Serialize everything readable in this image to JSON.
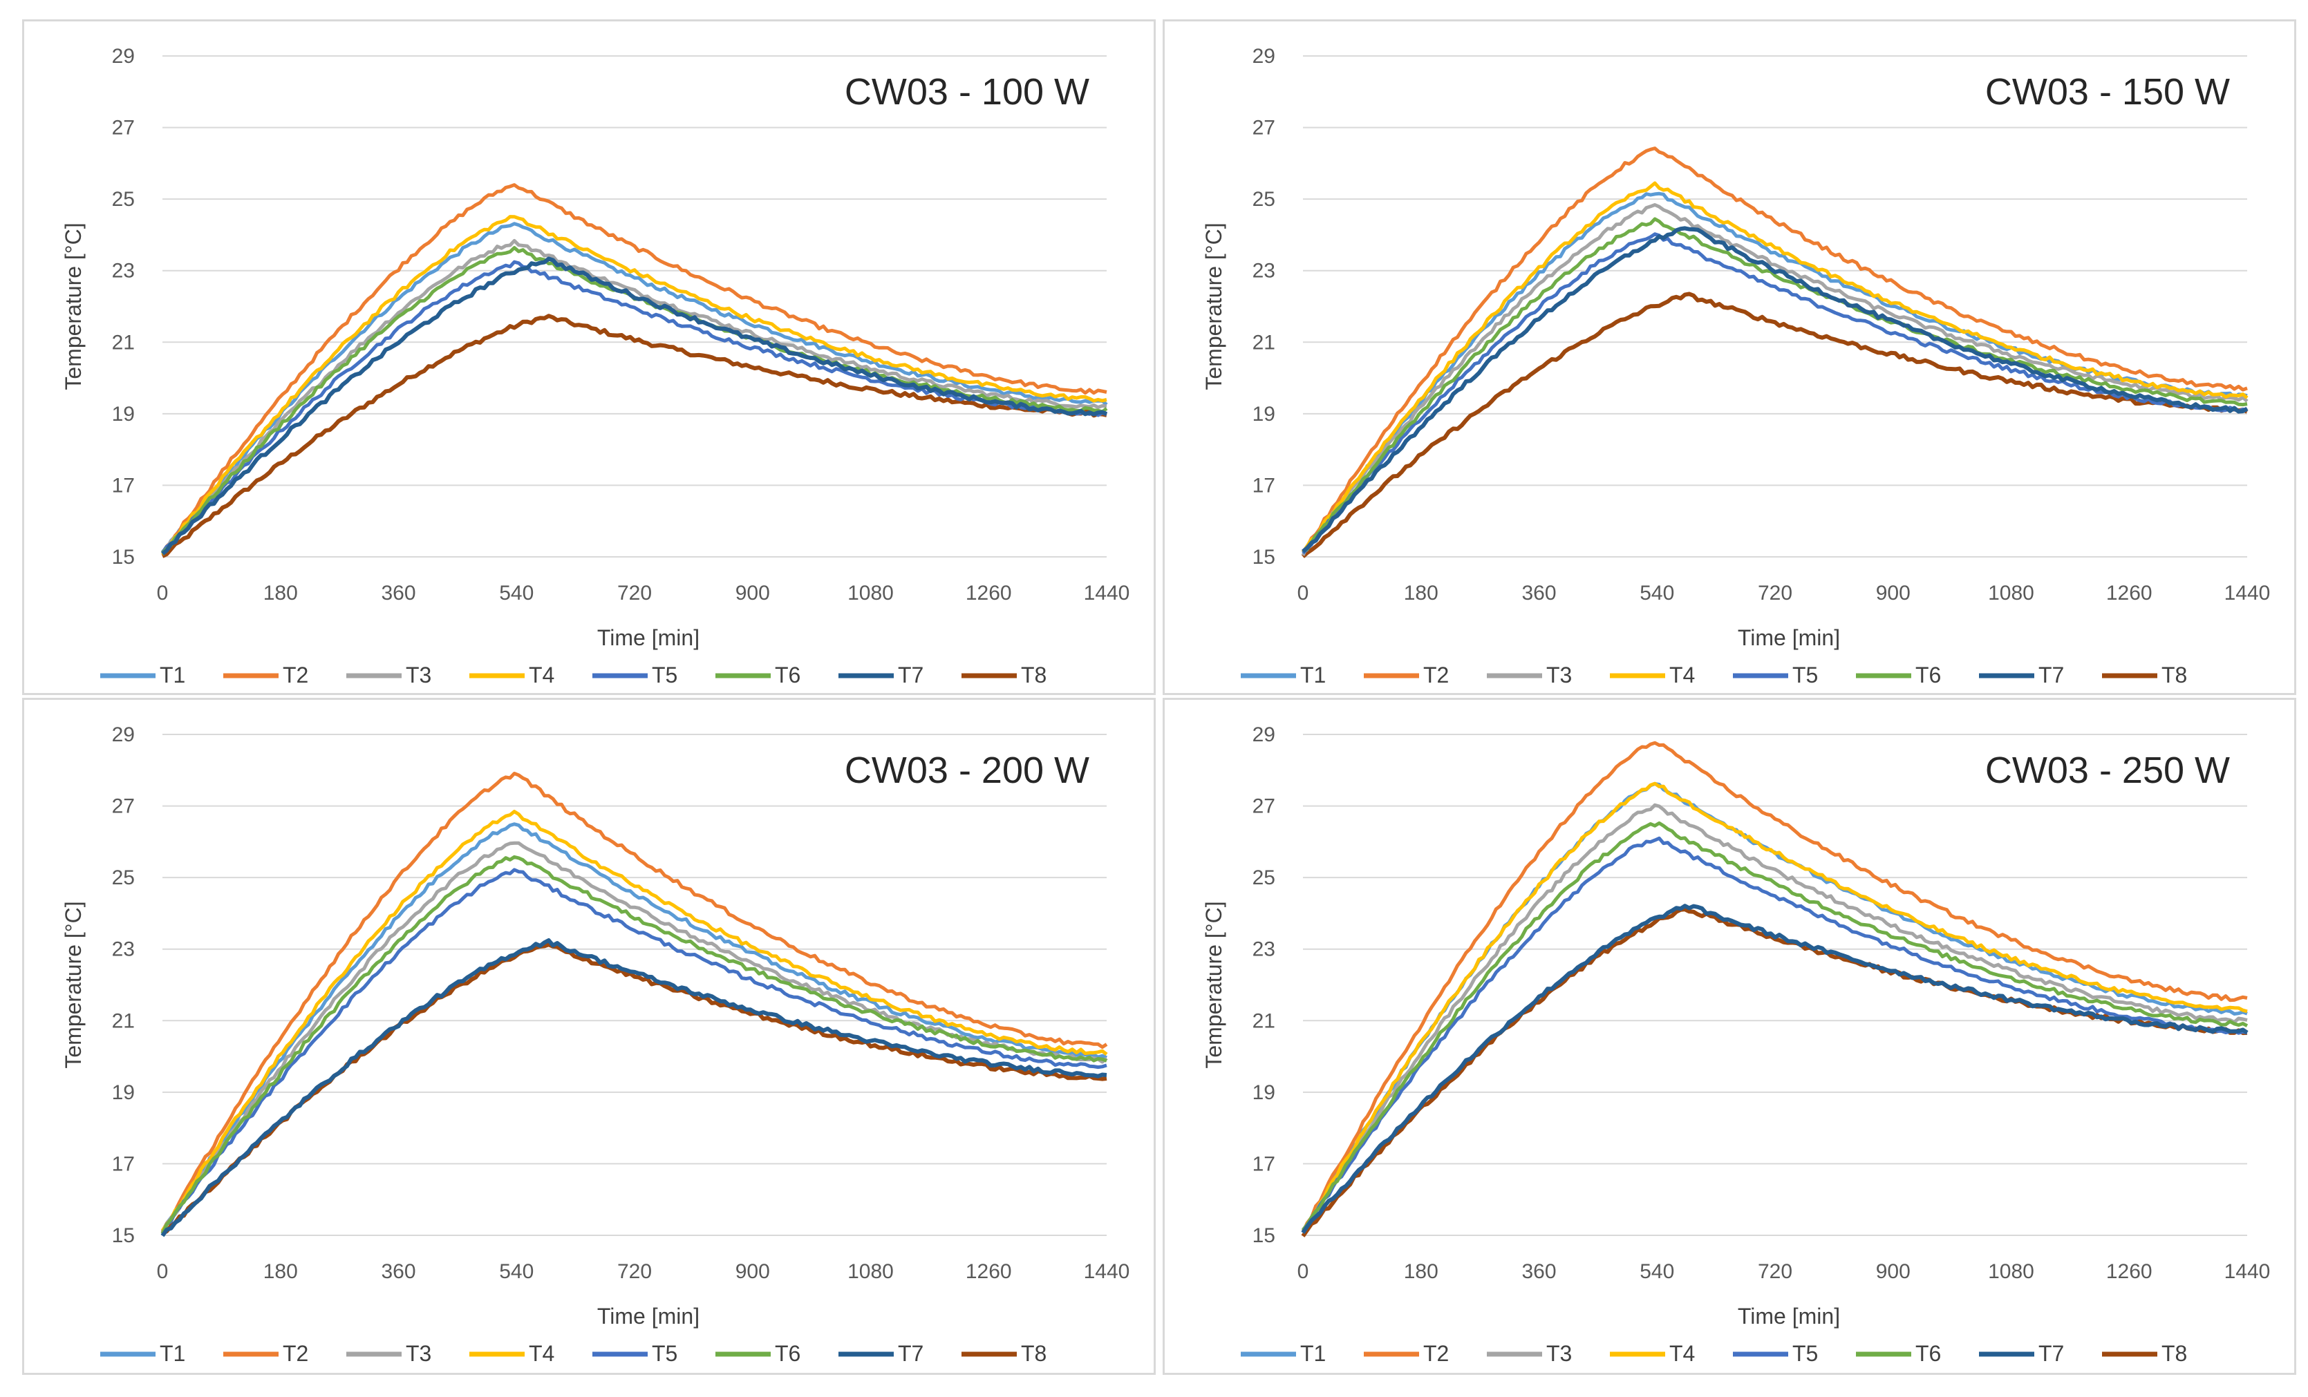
{
  "colors": {
    "T1": "#5b9bd5",
    "T2": "#ed7d31",
    "T3": "#a5a5a5",
    "T4": "#ffc000",
    "T5": "#4472c4",
    "T6": "#70ad47",
    "T7": "#255e91",
    "T8": "#9e480e"
  },
  "chart_data": [
    {
      "type": "line",
      "title": "CW03 - 100 W",
      "xlabel": "Time [min]",
      "ylabel": "Temperature [°C]",
      "xlim": [
        0,
        1440
      ],
      "ylim": [
        15,
        29
      ],
      "x_ticks": [
        "0",
        "180",
        "360",
        "540",
        "720",
        "900",
        "1080",
        "1260",
        "1440"
      ],
      "y_ticks": [
        "15",
        "17",
        "19",
        "21",
        "23",
        "25",
        "27",
        "29"
      ],
      "x": [
        0,
        540,
        1440
      ],
      "series": [
        {
          "name": "T1",
          "values": [
            15.1,
            24.3,
            19.3
          ]
        },
        {
          "name": "T2",
          "values": [
            15.1,
            25.4,
            19.6
          ]
        },
        {
          "name": "T3",
          "values": [
            15.1,
            23.8,
            19.2
          ]
        },
        {
          "name": "T4",
          "values": [
            15.1,
            24.5,
            19.4
          ]
        },
        {
          "name": "T5",
          "values": [
            15.1,
            23.2,
            19.0
          ]
        },
        {
          "name": "T6",
          "values": [
            15.1,
            23.6,
            19.1
          ]
        },
        {
          "name": "T7",
          "values": [
            15.1,
            23.3,
            19.0
          ]
        },
        {
          "name": "T8",
          "values": [
            15.0,
            21.7,
            19.0
          ]
        }
      ]
    },
    {
      "type": "line",
      "title": "CW03 - 150 W",
      "xlabel": "Time [min]",
      "ylabel": "Temperature [°C]",
      "xlim": [
        0,
        1440
      ],
      "ylim": [
        15,
        29
      ],
      "x_ticks": [
        "0",
        "180",
        "360",
        "540",
        "720",
        "900",
        "1080",
        "1260",
        "1440"
      ],
      "y_ticks": [
        "15",
        "17",
        "19",
        "21",
        "23",
        "25",
        "27",
        "29"
      ],
      "x": [
        0,
        540,
        1440
      ],
      "series": [
        {
          "name": "T1",
          "values": [
            15.1,
            25.2,
            19.5
          ]
        },
        {
          "name": "T2",
          "values": [
            15.1,
            26.4,
            19.7
          ]
        },
        {
          "name": "T3",
          "values": [
            15.1,
            24.8,
            19.4
          ]
        },
        {
          "name": "T4",
          "values": [
            15.1,
            25.4,
            19.5
          ]
        },
        {
          "name": "T5",
          "values": [
            15.1,
            24.0,
            19.1
          ]
        },
        {
          "name": "T6",
          "values": [
            15.1,
            24.4,
            19.3
          ]
        },
        {
          "name": "T7",
          "values": [
            15.1,
            24.2,
            19.1
          ]
        },
        {
          "name": "T8",
          "values": [
            15.0,
            22.3,
            19.1
          ]
        }
      ]
    },
    {
      "type": "line",
      "title": "CW03 - 200 W",
      "xlabel": "Time [min]",
      "ylabel": "Temperature [°C]",
      "xlim": [
        0,
        1440
      ],
      "ylim": [
        15,
        29
      ],
      "x_ticks": [
        "0",
        "180",
        "360",
        "540",
        "720",
        "900",
        "1080",
        "1260",
        "1440"
      ],
      "y_ticks": [
        "15",
        "17",
        "19",
        "21",
        "23",
        "25",
        "27",
        "29"
      ],
      "x": [
        0,
        540,
        1440
      ],
      "series": [
        {
          "name": "T1",
          "values": [
            15.1,
            26.5,
            20.0
          ]
        },
        {
          "name": "T2",
          "values": [
            15.1,
            27.9,
            20.3
          ]
        },
        {
          "name": "T3",
          "values": [
            15.1,
            26.0,
            19.9
          ]
        },
        {
          "name": "T4",
          "values": [
            15.1,
            26.8,
            20.1
          ]
        },
        {
          "name": "T5",
          "values": [
            15.1,
            25.2,
            19.7
          ]
        },
        {
          "name": "T6",
          "values": [
            15.1,
            25.6,
            19.9
          ]
        },
        {
          "name": "T7",
          "values": [
            15.0,
            23.2,
            19.5
          ]
        },
        {
          "name": "T8",
          "values": [
            15.0,
            23.1,
            19.4
          ]
        }
      ]
    },
    {
      "type": "line",
      "title": "CW03 - 250 W",
      "xlabel": "Time [min]",
      "ylabel": "Temperature [°C]",
      "xlim": [
        0,
        1440
      ],
      "ylim": [
        15,
        29
      ],
      "x_ticks": [
        "0",
        "180",
        "360",
        "540",
        "720",
        "900",
        "1080",
        "1260",
        "1440"
      ],
      "y_ticks": [
        "15",
        "17",
        "19",
        "21",
        "23",
        "25",
        "27",
        "29"
      ],
      "x": [
        0,
        540,
        1440
      ],
      "series": [
        {
          "name": "T1",
          "values": [
            15.1,
            27.6,
            21.2
          ]
        },
        {
          "name": "T2",
          "values": [
            15.1,
            28.8,
            21.6
          ]
        },
        {
          "name": "T3",
          "values": [
            15.1,
            27.0,
            21.0
          ]
        },
        {
          "name": "T4",
          "values": [
            15.1,
            27.6,
            21.3
          ]
        },
        {
          "name": "T5",
          "values": [
            15.1,
            26.1,
            20.7
          ]
        },
        {
          "name": "T6",
          "values": [
            15.1,
            26.5,
            20.9
          ]
        },
        {
          "name": "T7",
          "values": [
            15.1,
            24.2,
            20.7
          ]
        },
        {
          "name": "T8",
          "values": [
            15.0,
            24.1,
            20.7
          ]
        }
      ]
    }
  ]
}
